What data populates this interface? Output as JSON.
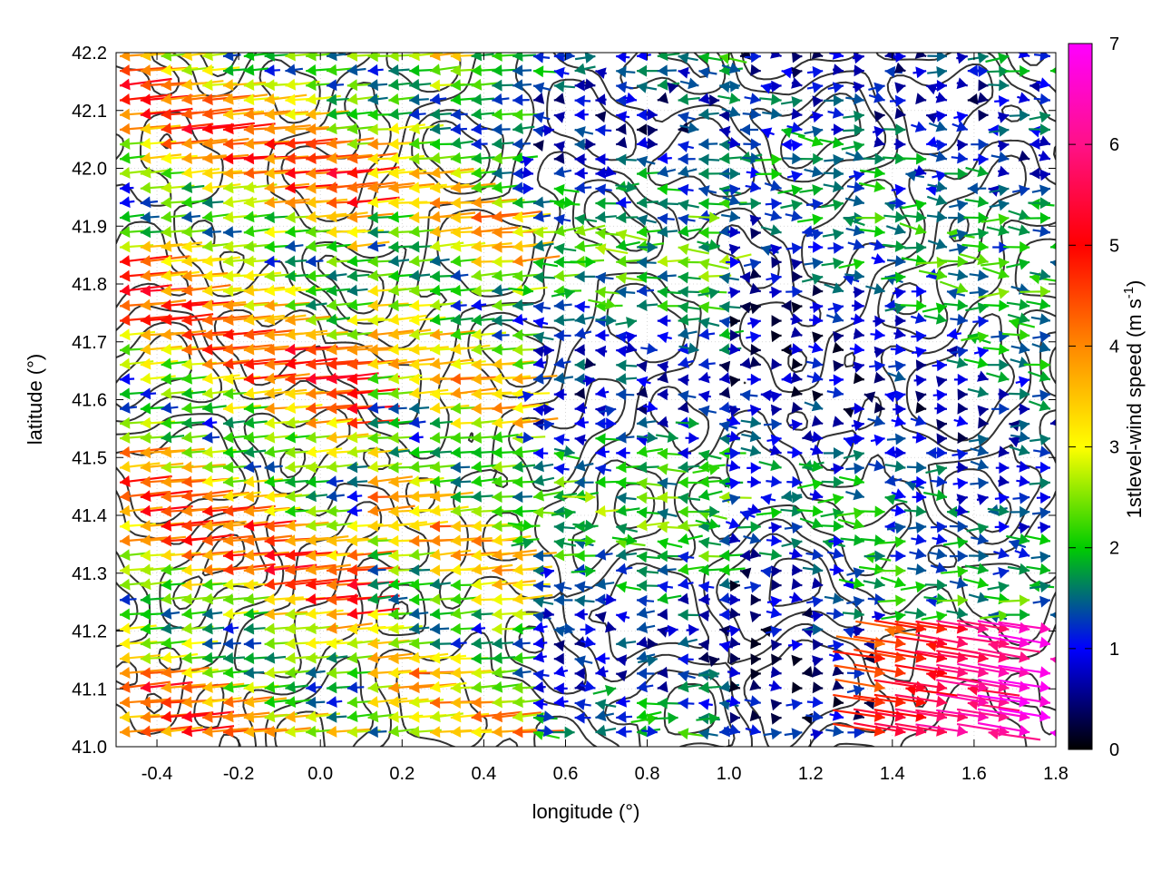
{
  "chart_data": {
    "type": "vector-field",
    "xlabel": "longitude (°)",
    "ylabel": "latitude (°)",
    "xlim": [
      -0.5,
      1.8
    ],
    "ylim": [
      41.0,
      42.2
    ],
    "x_ticks": [
      "-0.4",
      "-0.2",
      "0.0",
      "0.2",
      "0.4",
      "0.6",
      "0.8",
      "1.0",
      "1.2",
      "1.4",
      "1.6",
      "1.8"
    ],
    "y_ticks": [
      "41.0",
      "41.1",
      "41.2",
      "41.3",
      "41.4",
      "41.5",
      "41.6",
      "41.7",
      "41.8",
      "41.9",
      "42.0",
      "42.1",
      "42.2"
    ],
    "grid": true,
    "colorbar": {
      "label_main": "1stlevel-wind speed (m s",
      "label_sup": "-1",
      "label_end": ")",
      "range": [
        0,
        7
      ],
      "ticks": [
        "0",
        "1",
        "2",
        "3",
        "4",
        "5",
        "6",
        "7"
      ],
      "colors": [
        "#000000",
        "#0000ff",
        "#00cc00",
        "#ffff00",
        "#ff8800",
        "#ff0000",
        "#ff00ff"
      ]
    },
    "contour_color": "#333333",
    "wind_regimes": [
      {
        "region": "west",
        "lon_range": [
          -0.5,
          0.45
        ],
        "direction": "westward",
        "speed_range": [
          2.0,
          5.5
        ]
      },
      {
        "region": "central",
        "lon_range": [
          0.45,
          0.95
        ],
        "direction": "westward",
        "speed_range": [
          1.0,
          2.5
        ]
      },
      {
        "region": "east",
        "lon_range": [
          0.95,
          1.8
        ],
        "direction": "eastward",
        "speed_range": [
          0.3,
          2.5
        ]
      },
      {
        "region": "southeast",
        "lon_range": [
          1.4,
          1.8
        ],
        "lat_range": [
          41.0,
          41.2
        ],
        "direction": "eastward",
        "speed_range": [
          4.0,
          7.0
        ]
      }
    ]
  }
}
